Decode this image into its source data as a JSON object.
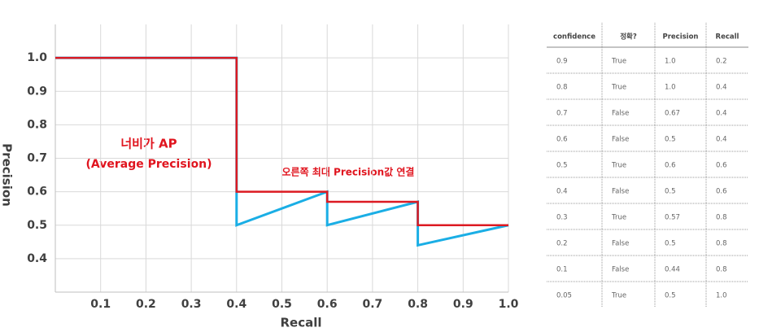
{
  "chart_data": {
    "type": "line",
    "xlabel": "Recall",
    "ylabel": "Precision",
    "annotations": [
      "너비가 AP",
      "(Average Precision)",
      "오른쪽 최대 Precision값 연결"
    ],
    "xlim": [
      0,
      1.0
    ],
    "ylim": [
      0.3,
      1.1
    ],
    "xticks": [
      0.1,
      0.2,
      0.3,
      0.4,
      0.5,
      0.6,
      0.7,
      0.8,
      0.9,
      {
        "value": 1,
        "label": "1.0"
      }
    ],
    "yticks": [
      0.4,
      0.5,
      0.6,
      0.7,
      0.8,
      0.9,
      {
        "value": 1,
        "label": "1.0"
      }
    ],
    "grid": true,
    "series": [
      {
        "color": "#1aaee5",
        "x": [
          0,
          0.4,
          0.4,
          0.6,
          0.6,
          0.8,
          0.8,
          1.0
        ],
        "values": [
          1.0,
          1.0,
          0.5,
          0.6,
          0.5,
          0.57,
          0.44,
          0.5
        ]
      },
      {
        "color": "#dc1a22",
        "x": [
          0,
          0.4,
          0.4,
          0.6,
          0.6,
          0.8,
          0.8,
          1.0
        ],
        "values": [
          1.0,
          1.0,
          0.6,
          0.6,
          0.57,
          0.57,
          0.5,
          0.5
        ]
      }
    ]
  },
  "table": {
    "header": [
      "confidence",
      "정확?",
      "Precision",
      "Recall"
    ],
    "rows": [
      [
        "0.9",
        "True",
        "1.0",
        "0.2"
      ],
      [
        "0.8",
        "True",
        "1.0",
        "0.4"
      ],
      [
        "0.7",
        "False",
        "0.67",
        "0.4"
      ],
      [
        "0.6",
        "False",
        "0.5",
        "0.4"
      ],
      [
        "0.5",
        "True",
        "0.6",
        "0.6"
      ],
      [
        "0.4",
        "False",
        "0.5",
        "0.6"
      ],
      [
        "0.3",
        "True",
        "0.57",
        "0.8"
      ],
      [
        "0.2",
        "False",
        "0.5",
        "0.8"
      ],
      [
        "0.1",
        "False",
        "0.44",
        "0.8"
      ],
      [
        "0.05",
        "True",
        "0.5",
        "1.0"
      ]
    ]
  }
}
